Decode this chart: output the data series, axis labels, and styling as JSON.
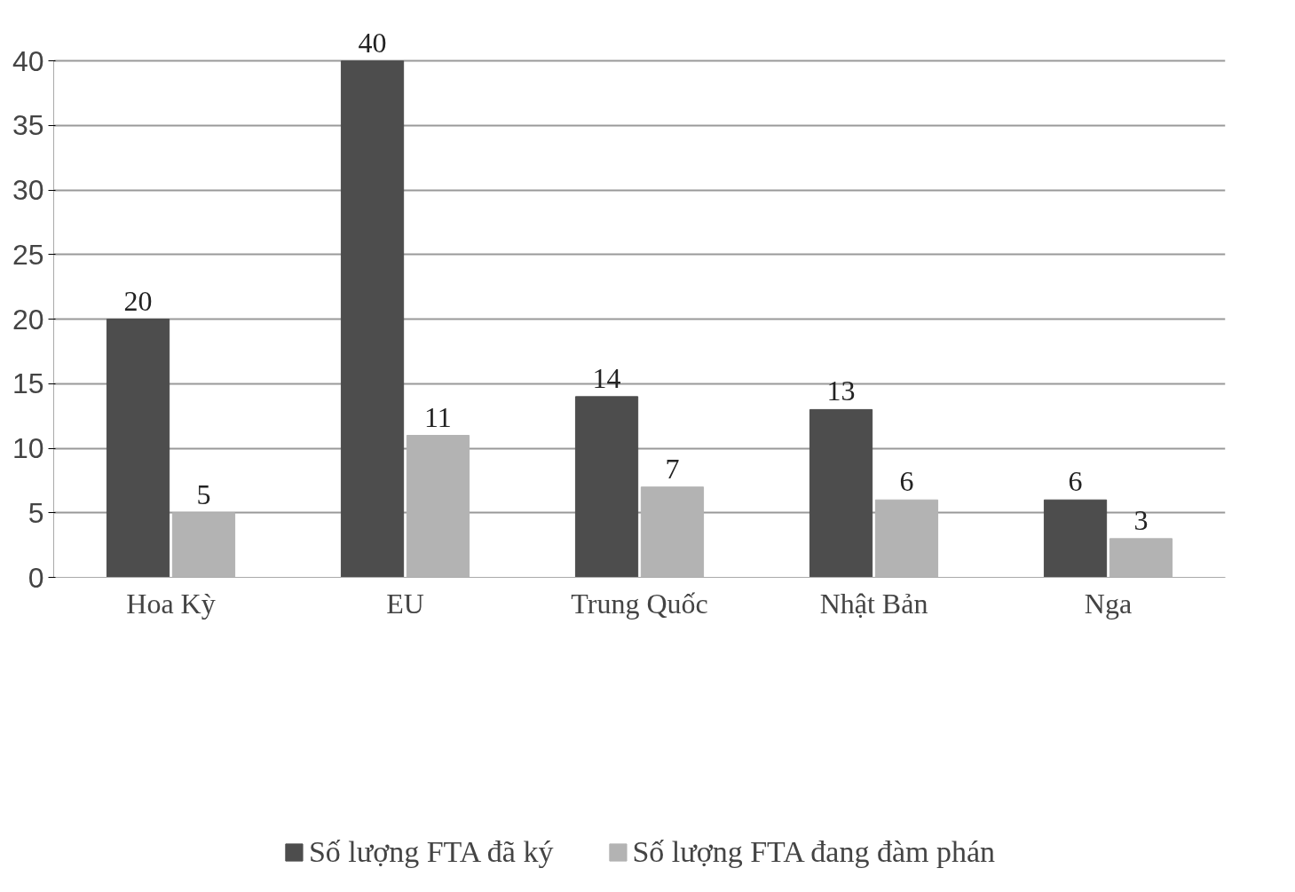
{
  "chart_data": {
    "type": "bar",
    "categories": [
      "Hoa Kỳ",
      "EU",
      "Trung Quốc",
      "Nhật Bản",
      "Nga"
    ],
    "series": [
      {
        "name": "Số lượng FTA đã ký",
        "color": "#4d4d4d",
        "values": [
          20,
          40,
          14,
          13,
          6
        ]
      },
      {
        "name": "Số lượng FTA đang đàm phán",
        "color": "#b3b3b3",
        "values": [
          5,
          11,
          7,
          6,
          3
        ]
      }
    ],
    "ylim": [
      0,
      40
    ],
    "yticks": [
      0,
      5,
      10,
      15,
      20,
      25,
      30,
      35,
      40
    ],
    "grid": "y",
    "legend": "bottom",
    "data_labels": true
  }
}
